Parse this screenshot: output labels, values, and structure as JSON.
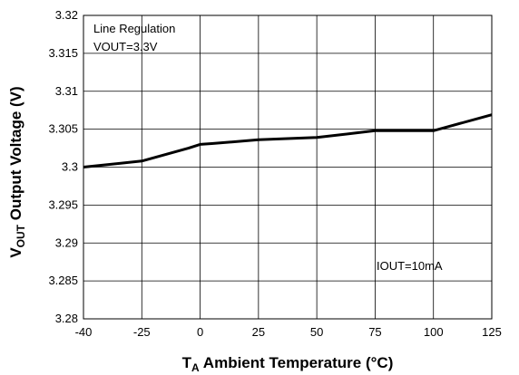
{
  "chart_data": {
    "type": "line",
    "ylabel": {
      "prefix": "V",
      "sub": "OUT",
      "rest": "  Output Voltage (V)"
    },
    "xlabel": {
      "prefix": "T",
      "sub": "A",
      "rest": " Ambient Temperature (°C)"
    },
    "annotations": [
      "Line Regulation",
      "VOUT=3.3V",
      "IOUT=10mA"
    ],
    "xlim": [
      -40,
      125
    ],
    "ylim": [
      3.28,
      3.32
    ],
    "x_ticks": [
      -40,
      -25,
      0,
      25,
      50,
      75,
      100,
      125
    ],
    "y_ticks": [
      3.28,
      3.285,
      3.29,
      3.295,
      3.3,
      3.305,
      3.31,
      3.315,
      3.32
    ],
    "x_tick_labels": [
      "-40",
      "-25",
      "0",
      "25",
      "50",
      "75",
      "100",
      "125"
    ],
    "y_tick_labels": [
      "3.28",
      "3.285",
      "3.29",
      "3.295",
      "3.3",
      "3.305",
      "3.31",
      "3.315",
      "3.32"
    ],
    "grid": true,
    "series": [
      {
        "x": [
          -40,
          -25,
          -5,
          0,
          5,
          25,
          50,
          75,
          100,
          125
        ],
        "y": [
          3.3,
          3.3008,
          3.3025,
          3.303,
          3.3031,
          3.3036,
          3.3039,
          3.3048,
          3.3048,
          3.3069
        ],
        "color": "#000000"
      }
    ]
  }
}
